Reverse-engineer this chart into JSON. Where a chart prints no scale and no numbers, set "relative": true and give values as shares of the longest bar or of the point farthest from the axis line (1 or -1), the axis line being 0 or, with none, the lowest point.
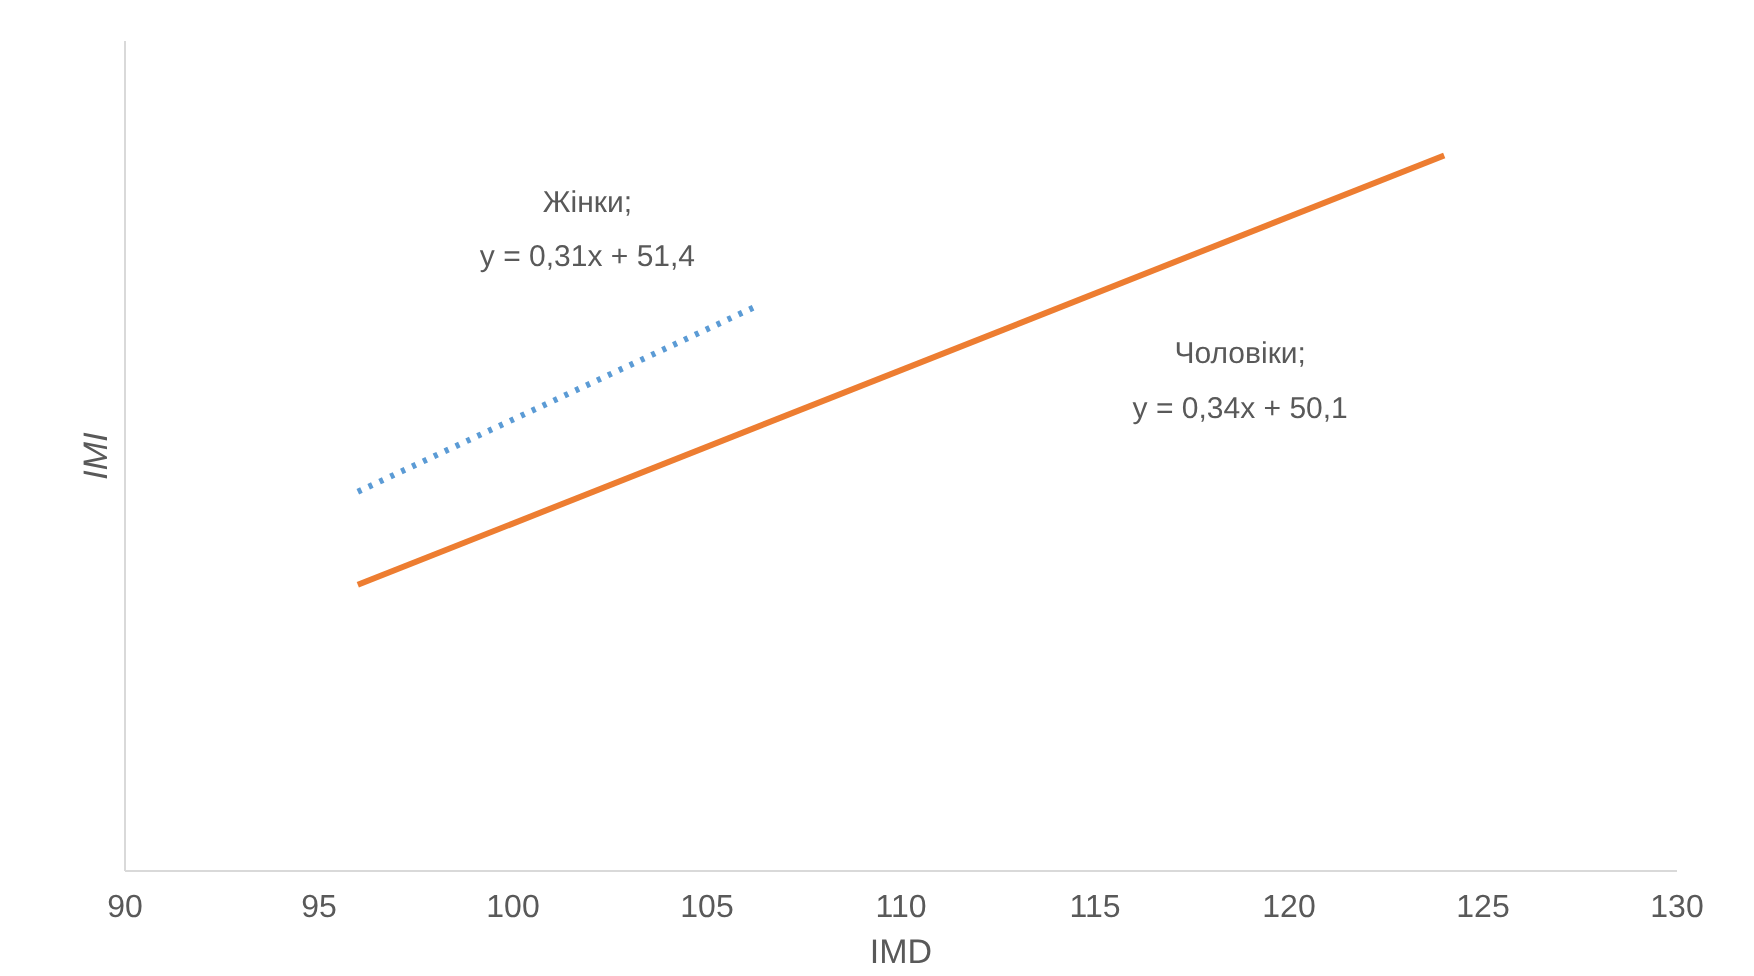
{
  "chart_data": {
    "type": "line",
    "relative": true,
    "xlabel": "IMD",
    "ylabel": "IMI",
    "xlim": [
      90,
      130
    ],
    "xticks": [
      90,
      95,
      100,
      105,
      110,
      115,
      120,
      125,
      130
    ],
    "series": [
      {
        "name": "Жінки;\ny = 0,31x + 51,4",
        "color": "#5b9bd5",
        "line_style": "dotted",
        "x": [
          96,
          106.3
        ],
        "values": [
          0.53,
          0.79
        ]
      },
      {
        "name": "Чоловіки;\ny = 0,34x + 50,1",
        "color": "#ed7d31",
        "line_style": "solid",
        "x": [
          96,
          124
        ],
        "values": [
          0.4,
          1.0
        ]
      }
    ],
    "grid": false,
    "marker": "none"
  }
}
